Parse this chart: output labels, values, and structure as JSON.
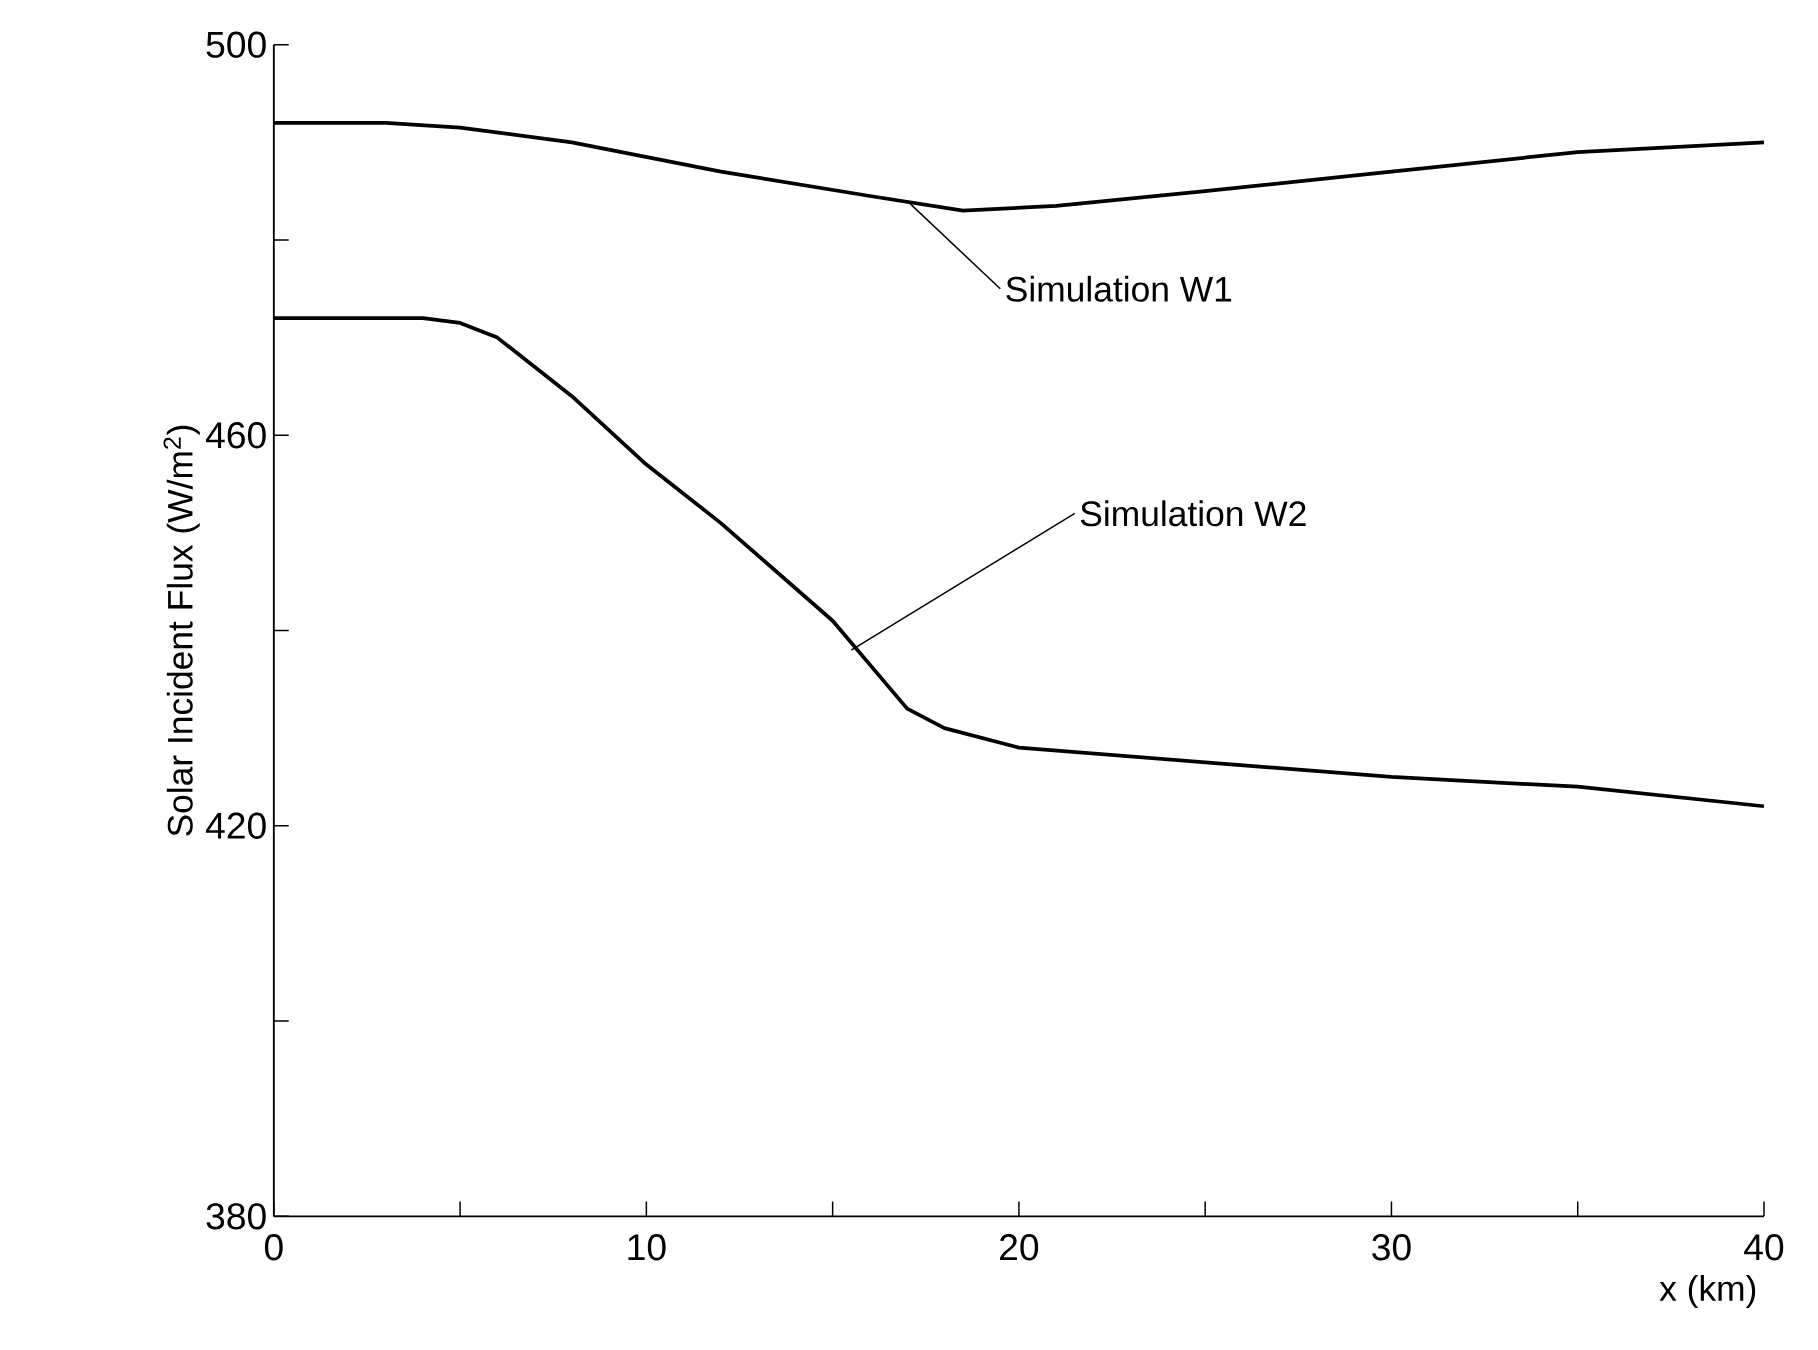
{
  "chart_data": {
    "type": "line",
    "xlabel": "x (km)",
    "ylabel": "Solar Incident Flux (W/m$^{2}$)",
    "xlim": [
      0,
      40
    ],
    "ylim": [
      380,
      500
    ],
    "xticks": [
      0,
      {
        "value": 5,
        "label": null
      },
      10,
      {
        "value": 15,
        "label": null
      },
      20,
      {
        "value": 25,
        "label": null
      },
      30,
      {
        "value": 35,
        "label": null
      },
      40
    ],
    "yticks": [
      380,
      {
        "value": 400,
        "label": null
      },
      420,
      {
        "value": 440,
        "label": null
      },
      460,
      {
        "value": 480,
        "label": null
      },
      500
    ],
    "marker": "none",
    "line_style": "solid",
    "series": [
      {
        "color": "#000000",
        "x": [
          0,
          3,
          5,
          8,
          12,
          16,
          18.5,
          21,
          25,
          30,
          35,
          40
        ],
        "values": [
          492,
          492,
          491.5,
          490,
          487,
          484.5,
          483,
          483.5,
          485,
          487,
          489,
          490
        ]
      },
      {
        "color": "#000000",
        "x": [
          0,
          4,
          5,
          6,
          8,
          10,
          12,
          15,
          17,
          18,
          20,
          25,
          30,
          35,
          40
        ],
        "values": [
          472,
          472,
          471.5,
          470,
          464,
          457,
          451,
          441,
          432,
          430,
          428,
          426.5,
          425,
          424,
          422
        ]
      }
    ],
    "annotations": [
      {
        "text": "Simulation W1",
        "x": 17,
        "y": 484
      },
      {
        "text": "Simulation W2",
        "x": 15.5,
        "y": 438
      }
    ]
  }
}
